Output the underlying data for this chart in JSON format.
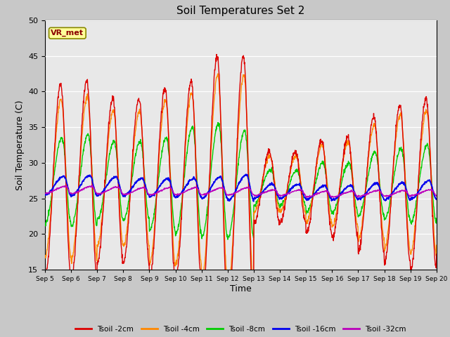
{
  "title": "Soil Temperatures Set 2",
  "xlabel": "Time",
  "ylabel": "Soil Temperature (C)",
  "ylim": [
    15,
    50
  ],
  "xlim": [
    0,
    360
  ],
  "fig_bg_color": "#c8c8c8",
  "plot_bg_color": "#e8e8e8",
  "annotation_text": "VR_met",
  "annotation_bg": "#ffff99",
  "annotation_border": "#888800",
  "colors": {
    "Tsoil -2cm": "#dd0000",
    "Tsoil -4cm": "#ff8800",
    "Tsoil -8cm": "#00cc00",
    "Tsoil -16cm": "#0000ee",
    "Tsoil -32cm": "#bb00bb"
  },
  "tick_labels": [
    "Sep 5",
    "Sep 6",
    "Sep 7",
    "Sep 8",
    "Sep 9",
    "Sep 10",
    "Sep 11",
    "Sep 12",
    "Sep 13",
    "Sep 14",
    "Sep 15",
    "Sep 16",
    "Sep 17",
    "Sep 18",
    "Sep 19",
    "Sep 20"
  ],
  "tick_positions": [
    0,
    24,
    48,
    72,
    96,
    120,
    144,
    168,
    192,
    216,
    240,
    264,
    288,
    312,
    336,
    360
  ],
  "yticks": [
    15,
    20,
    25,
    30,
    35,
    40,
    45,
    50
  ],
  "n_points": 1441
}
